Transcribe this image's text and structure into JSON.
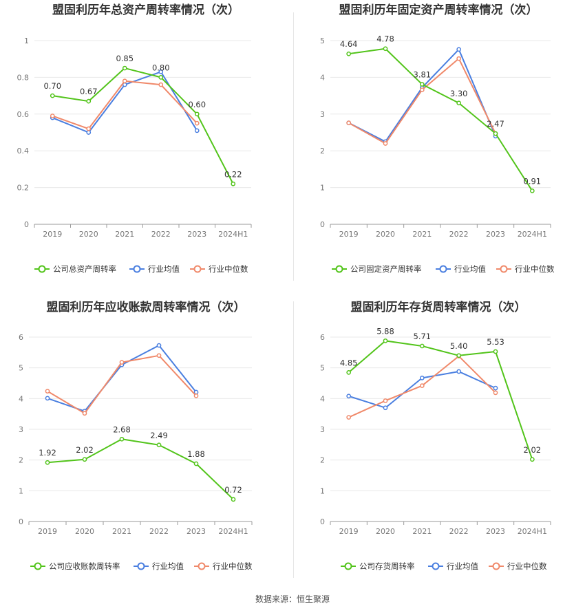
{
  "colors": {
    "company": "#52c41a",
    "industry_avg": "#4a7fe0",
    "industry_median": "#f0896a",
    "grid": "#e8e8e8",
    "axis": "#999999"
  },
  "source_text": "数据来源：恒生聚源",
  "chart_data": [
    {
      "type": "line",
      "title": "盟固利历年总资产周转率情况（次）",
      "categories": [
        "2019",
        "2020",
        "2021",
        "2022",
        "2023",
        "2024H1"
      ],
      "ylim": [
        0,
        1
      ],
      "yticks": [
        "0",
        "0.2",
        "0.4",
        "0.6",
        "0.8",
        "1"
      ],
      "ytick_values": [
        0,
        0.2,
        0.4,
        0.6,
        0.8,
        1
      ],
      "series": [
        {
          "name": "公司总资产周转率",
          "key": "company",
          "values": [
            0.7,
            0.67,
            0.85,
            0.8,
            0.6,
            0.22
          ],
          "labels": [
            "0.70",
            "0.67",
            "0.85",
            "0.80",
            "0.60",
            "0.22"
          ]
        },
        {
          "name": "行业均值",
          "key": "industry_avg",
          "values": [
            0.58,
            0.5,
            0.76,
            0.83,
            0.51,
            null
          ]
        },
        {
          "name": "行业中位数",
          "key": "industry_median",
          "values": [
            0.59,
            0.52,
            0.78,
            0.76,
            0.55,
            null
          ]
        }
      ]
    },
    {
      "type": "line",
      "title": "盟固利历年固定资产周转率情况（次）",
      "categories": [
        "2019",
        "2020",
        "2021",
        "2022",
        "2023",
        "2024H1"
      ],
      "ylim": [
        0,
        5
      ],
      "yticks": [
        "0",
        "1",
        "2",
        "3",
        "4",
        "5"
      ],
      "ytick_values": [
        0,
        1,
        2,
        3,
        4,
        5
      ],
      "series": [
        {
          "name": "公司固定资产周转率",
          "key": "company",
          "values": [
            4.64,
            4.78,
            3.81,
            3.3,
            2.47,
            0.91
          ],
          "labels": [
            "4.64",
            "4.78",
            "3.81",
            "3.30",
            "2.47",
            "0.91"
          ]
        },
        {
          "name": "行业均值",
          "key": "industry_avg",
          "values": [
            2.76,
            2.25,
            3.72,
            4.76,
            2.4,
            null
          ]
        },
        {
          "name": "行业中位数",
          "key": "industry_median",
          "values": [
            2.76,
            2.2,
            3.66,
            4.51,
            2.47,
            null
          ]
        }
      ]
    },
    {
      "type": "line",
      "title": "盟固利历年应收账款周转率情况（次）",
      "categories": [
        "2019",
        "2020",
        "2021",
        "2022",
        "2023",
        "2024H1"
      ],
      "ylim": [
        0,
        6
      ],
      "yticks": [
        "0",
        "1",
        "2",
        "3",
        "4",
        "5",
        "6"
      ],
      "ytick_values": [
        0,
        1,
        2,
        3,
        4,
        5,
        6
      ],
      "series": [
        {
          "name": "公司应收账款周转率",
          "key": "company",
          "values": [
            1.92,
            2.02,
            2.68,
            2.49,
            1.88,
            0.72
          ],
          "labels": [
            "1.92",
            "2.02",
            "2.68",
            "2.49",
            "1.88",
            "0.72"
          ]
        },
        {
          "name": "行业均值",
          "key": "industry_avg",
          "values": [
            4.01,
            3.59,
            5.1,
            5.73,
            4.21,
            null
          ]
        },
        {
          "name": "行业中位数",
          "key": "industry_median",
          "values": [
            4.24,
            3.52,
            5.18,
            5.4,
            4.09,
            null
          ]
        }
      ]
    },
    {
      "type": "line",
      "title": "盟固利历年存货周转率情况（次）",
      "categories": [
        "2019",
        "2020",
        "2021",
        "2022",
        "2023",
        "2024H1"
      ],
      "ylim": [
        0,
        6
      ],
      "yticks": [
        "0",
        "1",
        "2",
        "3",
        "4",
        "5",
        "6"
      ],
      "ytick_values": [
        0,
        1,
        2,
        3,
        4,
        5,
        6
      ],
      "series": [
        {
          "name": "公司存货周转率",
          "key": "company",
          "values": [
            4.85,
            5.88,
            5.71,
            5.4,
            5.53,
            2.02
          ],
          "labels": [
            "4.85",
            "5.88",
            "5.71",
            "5.40",
            "5.53",
            "2.02"
          ]
        },
        {
          "name": "行业均值",
          "key": "industry_avg",
          "values": [
            4.08,
            3.7,
            4.67,
            4.88,
            4.34,
            null
          ]
        },
        {
          "name": "行业中位数",
          "key": "industry_median",
          "values": [
            3.39,
            3.93,
            4.42,
            5.38,
            4.19,
            null
          ]
        }
      ]
    }
  ]
}
